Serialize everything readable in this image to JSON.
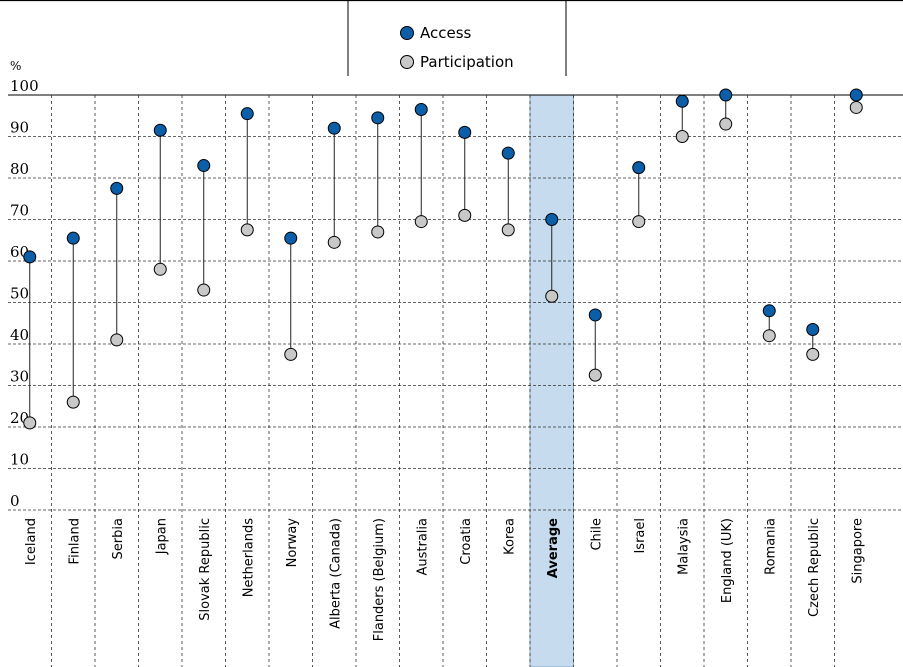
{
  "chart_data": {
    "type": "scatter",
    "unit_label": "%",
    "ylim": [
      0,
      100
    ],
    "yticks": [
      0,
      10,
      20,
      30,
      40,
      50,
      60,
      70,
      80,
      90,
      100
    ],
    "grid": true,
    "legend_position": "top-center",
    "categories": [
      "Iceland",
      "Finland",
      "Serbia",
      "Japan",
      "Slovak Republic",
      "Netherlands",
      "Norway",
      "Alberta (Canada)",
      "Flanders (Belgium)",
      "Australia",
      "Croatia",
      "Korea",
      "Average",
      "Chile",
      "Israel",
      "Malaysia",
      "England (UK)",
      "Romania",
      "Czech Republic",
      "Singapore"
    ],
    "highlight_category": "Average",
    "series": [
      {
        "name": "Access",
        "color": "#0b5ea8",
        "values": [
          61,
          65.5,
          77.5,
          91.5,
          83,
          95.5,
          65.5,
          92,
          94.5,
          96.5,
          91,
          86,
          70,
          47,
          82.5,
          98.5,
          100,
          48,
          43.5,
          100
        ]
      },
      {
        "name": "Participation",
        "color": "#c8c8c8",
        "values": [
          21,
          26,
          41,
          58,
          53,
          67.5,
          37.5,
          64.5,
          67,
          69.5,
          71,
          67.5,
          51.5,
          32.5,
          69.5,
          90,
          93,
          42,
          37.5,
          97
        ]
      }
    ]
  },
  "colors": {
    "highlight_band": "#c6dcee",
    "highlight_border": "#7aa8cf"
  }
}
